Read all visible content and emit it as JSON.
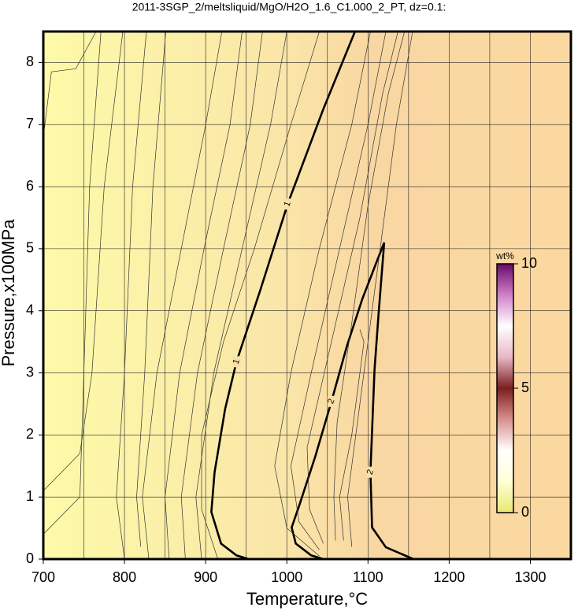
{
  "chart_data": {
    "type": "contour",
    "title": "2011-3SGP_2/meltsliquid/MgO/H2O_1.6_C1.000_2_PT, dz=0.1:",
    "x_label": "Temperature,°C",
    "y_label": "Pressure,x100MPa",
    "xlim": [
      700,
      1350
    ],
    "ylim": [
      0,
      8.5
    ],
    "xticks": [
      700,
      800,
      900,
      1000,
      1100,
      1200,
      1300
    ],
    "xminorticks": [
      750,
      850,
      950,
      1050,
      1150,
      1250,
      1350
    ],
    "yticks": [
      0,
      1,
      2,
      3,
      4,
      5,
      6,
      7,
      8
    ],
    "grid": true,
    "contours": [
      {
        "level": 1,
        "color": "#000000",
        "x": [
          953,
          938,
          919,
          907,
          911,
          924,
          938,
          967,
          1001,
          1045,
          1084
        ],
        "y": [
          0,
          0.06,
          0.25,
          0.76,
          1.4,
          2.42,
          3.18,
          4.32,
          5.72,
          7.25,
          8.5
        ]
      },
      {
        "level": 2,
        "color": "#000000",
        "x": [
          1156,
          1122,
          1105,
          1103,
          1108,
          1113,
          1120,
          1108,
          1093,
          1074,
          1055,
          1035,
          1016,
          1006,
          1011,
          1030,
          1045
        ],
        "y": [
          0,
          0.19,
          0.51,
          1.4,
          3.05,
          3.94,
          5.1,
          4.7,
          4.19,
          3.43,
          2.54,
          1.65,
          0.89,
          0.51,
          0.25,
          0.06,
          0
        ]
      },
      {
        "color": "#333333",
        "x": [
          700,
          745,
          750,
          757,
          771
        ],
        "y": [
          0.4,
          1,
          3,
          6,
          8.5
        ]
      },
      {
        "color": "#333333",
        "x": [
          700,
          710,
          740,
          765
        ],
        "y": [
          6.8,
          7.85,
          7.9,
          8.5
        ]
      },
      {
        "color": "#333333",
        "x": [
          700,
          745,
          760,
          775,
          798
        ],
        "y": [
          1.1,
          1.7,
          3,
          6,
          8.5
        ]
      },
      {
        "color": "#333333",
        "x": [
          800,
          790,
          800,
          810,
          827
        ],
        "y": [
          0,
          1,
          3,
          6,
          8.5
        ]
      },
      {
        "color": "#333333",
        "x": [
          820,
          815,
          825,
          835,
          851
        ],
        "y": [
          0.2,
          1,
          3,
          6,
          8.5
        ]
      },
      {
        "color": "#333333",
        "x": [
          830,
          822,
          840,
          870,
          900,
          920
        ],
        "y": [
          0,
          1,
          3,
          5,
          7,
          8.5
        ]
      },
      {
        "color": "#333333",
        "x": [
          855,
          850,
          868,
          898,
          930,
          945
        ],
        "y": [
          0,
          1,
          3,
          5,
          7,
          8.5
        ]
      },
      {
        "color": "#333333",
        "x": [
          875,
          870,
          890,
          922,
          955,
          970
        ],
        "y": [
          0,
          1,
          3,
          5,
          7,
          8.5
        ]
      },
      {
        "color": "#333333",
        "x": [
          895,
          888,
          910,
          945,
          980,
          1000
        ],
        "y": [
          0,
          1,
          3,
          5,
          7,
          8.5
        ]
      },
      {
        "color": "#333333",
        "x": [
          915,
          895,
          895,
          922,
          960,
          1005,
          1040
        ],
        "y": [
          0,
          0.8,
          2,
          3.5,
          5,
          7,
          8.5
        ]
      },
      {
        "color": "#333333",
        "x": [
          1040,
          1000,
          985,
          1005,
          1040,
          1080,
          1103
        ],
        "y": [
          0.05,
          0.5,
          1.5,
          3,
          5,
          7,
          8.5
        ]
      },
      {
        "color": "#333333",
        "x": [
          1040,
          1015,
          1005,
          1030,
          1065,
          1100,
          1122
        ],
        "y": [
          0.15,
          0.6,
          1.5,
          3,
          5,
          7,
          8.5
        ]
      },
      {
        "color": "#333333",
        "x": [
          1045,
          1028,
          1025,
          1055,
          1090,
          1118,
          1137
        ],
        "y": [
          0.25,
          0.8,
          1.8,
          3.5,
          5.5,
          7.5,
          8.5
        ]
      },
      {
        "color": "#333333",
        "x": [
          1060,
          1058,
          1062,
          1080,
          1100,
          1125,
          1145
        ],
        "y": [
          0.3,
          1,
          2.2,
          3.8,
          5.7,
          7.5,
          8.5
        ]
      },
      {
        "color": "#333333",
        "x": [
          1070,
          1065,
          1080,
          1095,
          1090
        ],
        "y": [
          0.3,
          1,
          2,
          3.5,
          3.7
        ]
      },
      {
        "color": "#333333",
        "x": [
          1080,
          1075,
          1090,
          1110,
          1135,
          1155
        ],
        "y": [
          0.2,
          1,
          2.5,
          4.5,
          7,
          8.5
        ]
      }
    ],
    "colorbar": {
      "label": "wt%",
      "lim": [
        0,
        10
      ],
      "ticks": [
        0,
        5,
        10
      ],
      "colormap": [
        "#e8e870",
        "#ffffd8",
        "#ffffff",
        "#d89090",
        "#7a1e1e",
        "#e8b8c8",
        "#ffffff",
        "#d080c8",
        "#6a0a6a"
      ]
    }
  }
}
